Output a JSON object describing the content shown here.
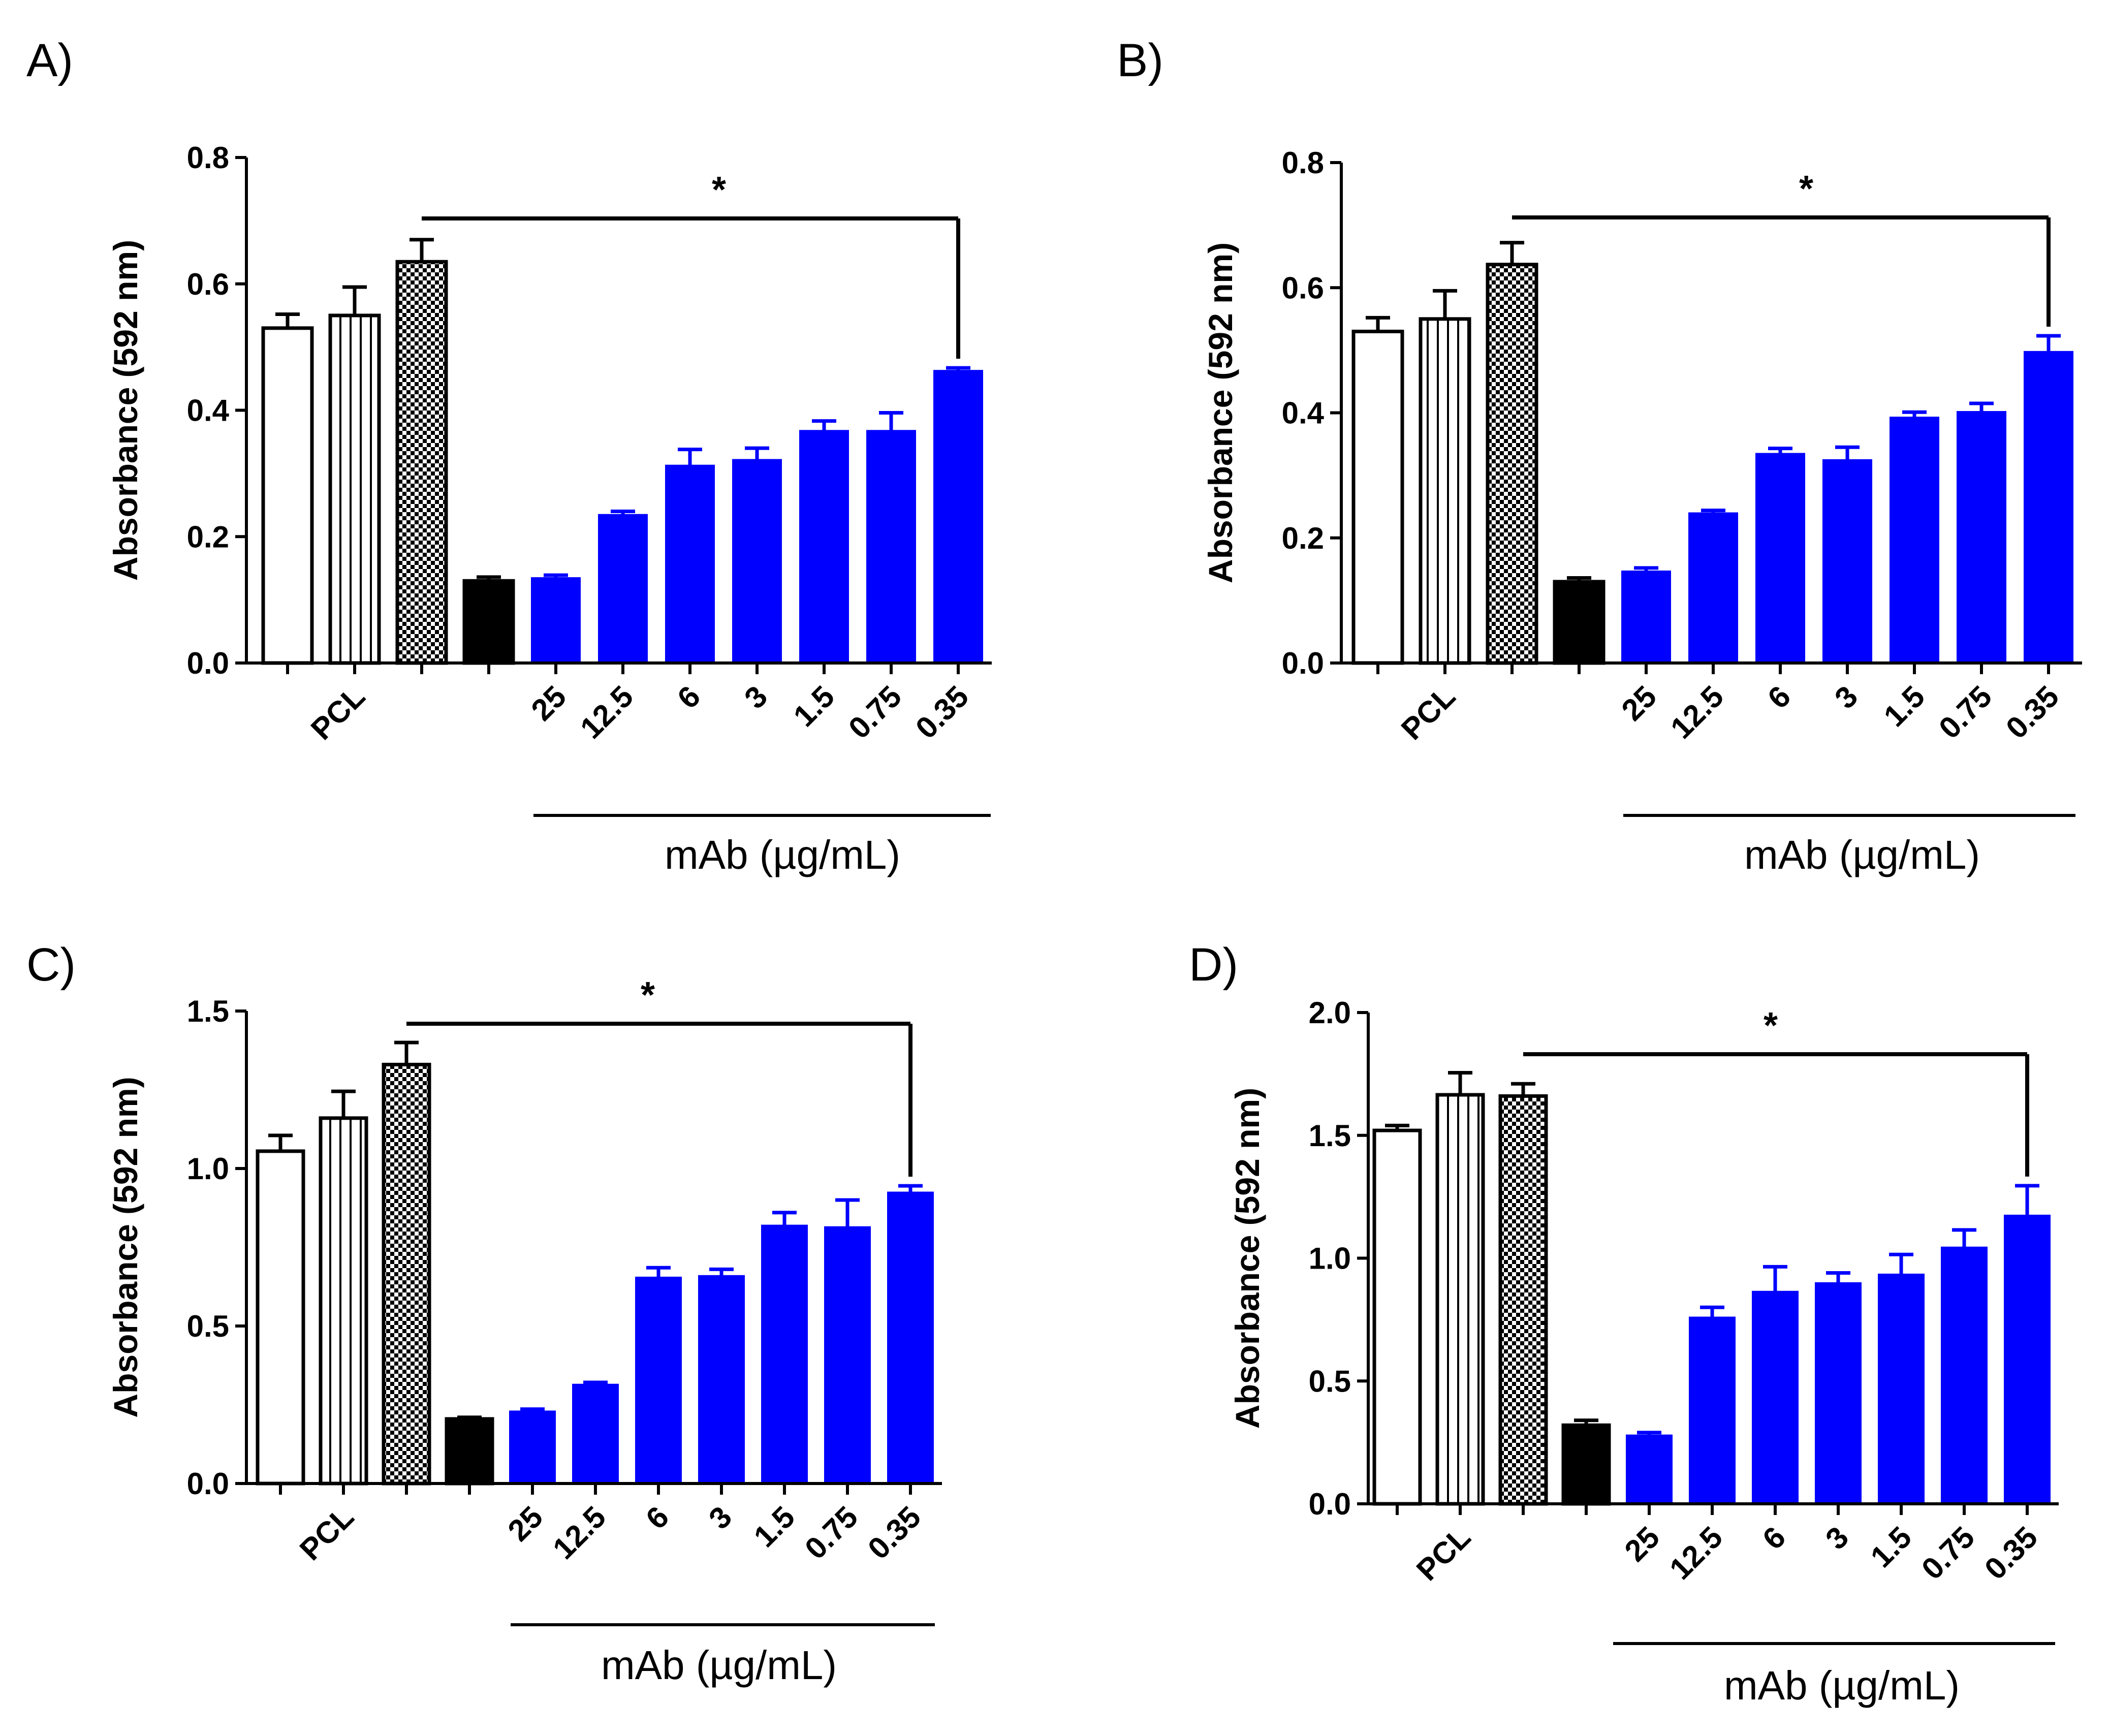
{
  "colors": {
    "blue": "#0000ff",
    "black": "#000000",
    "white": "#ffffff"
  },
  "chart_data": [
    {
      "panel": "A)",
      "type": "bar",
      "ylabel": "Absorbance (592 nm)",
      "ylim": [
        0,
        0.8
      ],
      "yticks": [
        "0.0",
        "0.2",
        "0.4",
        "0.6",
        "0.8"
      ],
      "category_labels": [
        "",
        "PCL",
        "",
        "",
        "25",
        "12.5",
        "6",
        "3",
        "1.5",
        "0.75",
        "0.35"
      ],
      "fills": [
        "white",
        "vstripes",
        "checker",
        "black",
        "blue",
        "blue",
        "blue",
        "blue",
        "blue",
        "blue",
        "blue"
      ],
      "values": [
        0.53,
        0.55,
        0.635,
        0.13,
        0.135,
        0.235,
        0.313,
        0.322,
        0.368,
        0.368,
        0.463
      ],
      "errors": [
        0.022,
        0.045,
        0.035,
        0.006,
        0.004,
        0.005,
        0.025,
        0.018,
        0.015,
        0.028,
        0.004
      ],
      "significance": "*",
      "group_label": "mAb (µg/mL)"
    },
    {
      "panel": "B)",
      "type": "bar",
      "ylabel": "Absorbance (592 nm)",
      "ylim": [
        0,
        0.8
      ],
      "yticks": [
        "0.0",
        "0.2",
        "0.4",
        "0.6",
        "0.8"
      ],
      "category_labels": [
        "",
        "PCL",
        "",
        "",
        "25",
        "12.5",
        "6",
        "3",
        "1.5",
        "0.75",
        "0.35"
      ],
      "fills": [
        "white",
        "vstripes",
        "checker",
        "black",
        "blue",
        "blue",
        "blue",
        "blue",
        "blue",
        "blue",
        "blue"
      ],
      "values": [
        0.53,
        0.55,
        0.637,
        0.13,
        0.147,
        0.24,
        0.335,
        0.325,
        0.393,
        0.402,
        0.498
      ],
      "errors": [
        0.022,
        0.045,
        0.035,
        0.006,
        0.005,
        0.004,
        0.008,
        0.02,
        0.008,
        0.013,
        0.025
      ],
      "significance": "*",
      "group_label": "mAb (µg/mL)"
    },
    {
      "panel": "C)",
      "type": "bar",
      "ylabel": "Absorbance (592 nm)",
      "ylim": [
        0,
        1.5
      ],
      "yticks": [
        "0.0",
        "0.5",
        "1.0",
        "1.5"
      ],
      "category_labels": [
        "",
        "PCL",
        "",
        "",
        "25",
        "12.5",
        "6",
        "3",
        "1.5",
        "0.75",
        "0.35"
      ],
      "fills": [
        "white",
        "vstripes",
        "checker",
        "black",
        "blue",
        "blue",
        "blue",
        "blue",
        "blue",
        "blue",
        "blue"
      ],
      "values": [
        1.055,
        1.16,
        1.33,
        0.205,
        0.23,
        0.315,
        0.655,
        0.66,
        0.82,
        0.815,
        0.925
      ],
      "errors": [
        0.05,
        0.085,
        0.07,
        0.005,
        0.006,
        0.006,
        0.03,
        0.02,
        0.04,
        0.085,
        0.02
      ],
      "significance": "*",
      "group_label": "mAb (µg/mL)"
    },
    {
      "panel": "D)",
      "type": "bar",
      "ylabel": "Absorbance (592 nm)",
      "ylim": [
        0,
        2.0
      ],
      "yticks": [
        "0.0",
        "0.5",
        "1.0",
        "1.5",
        "2.0"
      ],
      "category_labels": [
        "",
        "PCL",
        "",
        "",
        "25",
        "12.5",
        "6",
        "3",
        "1.5",
        "0.75",
        "0.35"
      ],
      "fills": [
        "white",
        "vstripes",
        "checker",
        "black",
        "blue",
        "blue",
        "blue",
        "blue",
        "blue",
        "blue",
        "blue"
      ],
      "values": [
        1.52,
        1.665,
        1.66,
        0.32,
        0.28,
        0.76,
        0.865,
        0.9,
        0.935,
        1.045,
        1.175
      ],
      "errors": [
        0.02,
        0.09,
        0.05,
        0.02,
        0.01,
        0.04,
        0.1,
        0.04,
        0.08,
        0.07,
        0.12
      ],
      "significance": "*",
      "group_label": "mAb (µg/mL)"
    }
  ]
}
